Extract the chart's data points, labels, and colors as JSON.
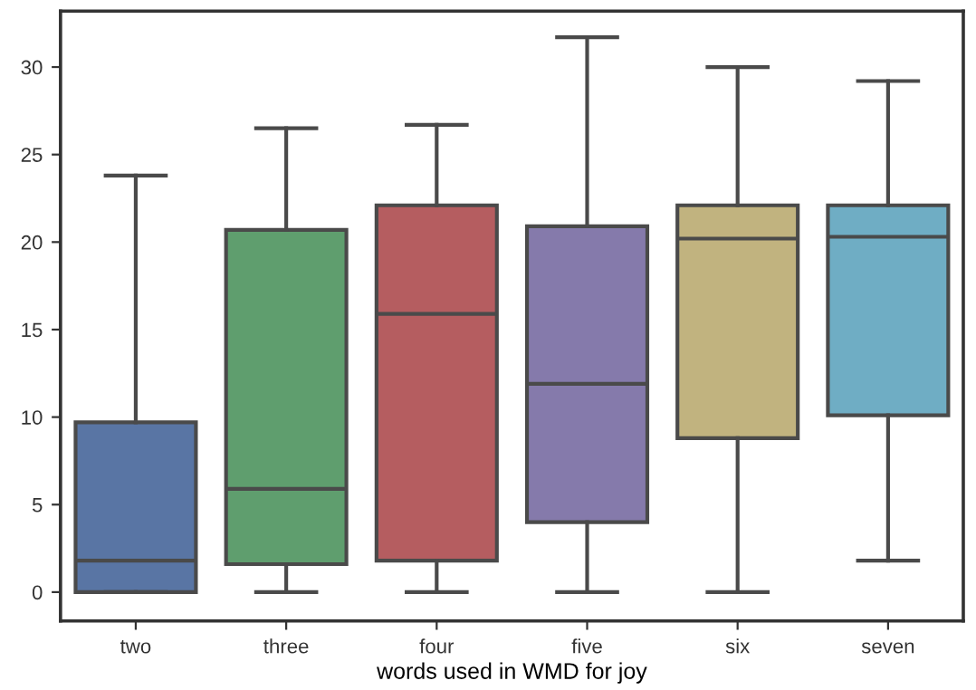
{
  "chart_data": {
    "type": "box",
    "xlabel": "words used in WMD for joy",
    "categories": [
      "two",
      "three",
      "four",
      "five",
      "six",
      "seven"
    ],
    "colors": [
      "#5975a4",
      "#5f9e6e",
      "#b55d60",
      "#857aab",
      "#c1b37f",
      "#6fadc4"
    ],
    "boxes": [
      {
        "low": 0,
        "q1": 0,
        "median": 1.8,
        "q3": 9.7,
        "high": 23.8
      },
      {
        "low": 0,
        "q1": 1.6,
        "median": 5.9,
        "q3": 20.7,
        "high": 26.5
      },
      {
        "low": 0,
        "q1": 1.8,
        "median": 15.9,
        "q3": 22.1,
        "high": 26.7
      },
      {
        "low": 0,
        "q1": 4.0,
        "median": 11.9,
        "q3": 20.9,
        "high": 31.7
      },
      {
        "low": 0,
        "q1": 8.8,
        "median": 20.2,
        "q3": 22.1,
        "high": 30.0
      },
      {
        "low": 1.8,
        "q1": 10.1,
        "median": 20.3,
        "q3": 22.1,
        "high": 29.2
      }
    ],
    "ylim": [
      -1.65,
      33.2
    ],
    "yticks": [
      0,
      5,
      10,
      15,
      20,
      25,
      30
    ],
    "grid": false,
    "legend": false
  }
}
